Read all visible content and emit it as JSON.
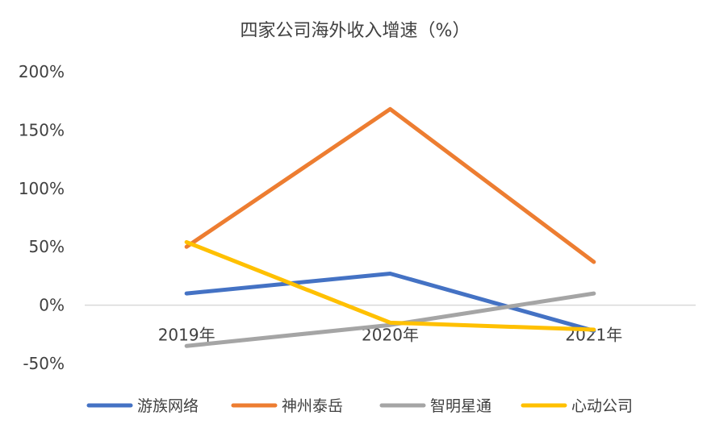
{
  "chart_data": {
    "type": "line",
    "title": "四家公司海外收入增速（%）",
    "categories": [
      "2019年",
      "2020年",
      "2021年"
    ],
    "y_tick_labels": [
      "-50%",
      "0%",
      "50%",
      "100%",
      "150%",
      "200%"
    ],
    "y_ticks": [
      -50,
      0,
      50,
      100,
      150,
      200
    ],
    "ylim": [
      -50,
      200
    ],
    "grid": false,
    "legend_position": "bottom",
    "series": [
      {
        "name": "游族网络",
        "values": [
          10,
          27,
          -22
        ],
        "color": "#4472C4"
      },
      {
        "name": "神州泰岳",
        "values": [
          50,
          168,
          37
        ],
        "color": "#ED7D31"
      },
      {
        "name": "智明星通",
        "values": [
          -35,
          -17,
          10
        ],
        "color": "#A5A5A5"
      },
      {
        "name": "心动公司",
        "values": [
          54,
          -15,
          -21
        ],
        "color": "#FFC000"
      }
    ]
  }
}
